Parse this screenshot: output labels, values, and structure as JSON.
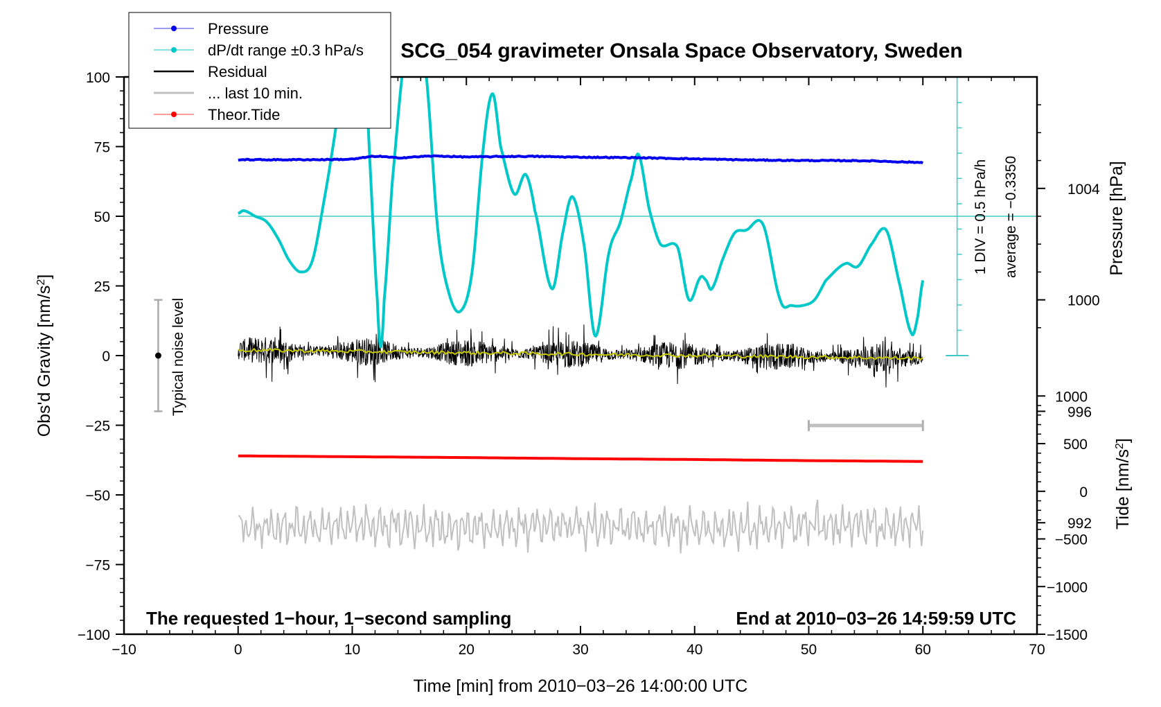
{
  "chart_data": {
    "type": "line",
    "title": "SCG_054 gravimeter Onsala Space Observatory, Sweden",
    "xlabel": "Time [min] from 2010−03−26 14:00:00 UTC",
    "ylabel_left": "Obs'd Gravity [nm/s",
    "ylabel_left_sup": "2",
    "ylabel_left_end": "]",
    "ylabel_right_pressure": "Pressure [hPa]",
    "ylabel_right_tide": "Tide [nm/s",
    "ylabel_right_tide_sup": "2",
    "ylabel_right_tide_end": "]",
    "xlim": [
      -10,
      70
    ],
    "ylim": [
      -100,
      100
    ],
    "x_ticks": [
      "−10",
      "0",
      "10",
      "20",
      "30",
      "40",
      "50",
      "60",
      "70"
    ],
    "x_tick_values": [
      -10,
      0,
      10,
      20,
      30,
      40,
      50,
      60,
      70
    ],
    "y_ticks": [
      "100",
      "75",
      "50",
      "25",
      "0",
      "−25",
      "−50",
      "−75",
      "−100"
    ],
    "y_tick_values": [
      100,
      75,
      50,
      25,
      0,
      -25,
      -50,
      -75,
      -100
    ],
    "pressure_axis": {
      "ticks": [
        "1004",
        "1000",
        "996",
        "992"
      ],
      "tick_values": [
        1004,
        1000,
        996,
        992
      ],
      "range_hpa": [
        988,
        1008
      ]
    },
    "tide_axis": {
      "ticks": [
        "1000",
        "500",
        "0",
        "−500",
        "−1000",
        "−1500"
      ],
      "tick_values": [
        1000,
        500,
        0,
        -500,
        -1000,
        -1500
      ],
      "range_nms2": [
        -1500,
        1000
      ]
    },
    "dpdt_axis_text": [
      "1 DIV = 0.5 hPa/h",
      "average = −0.3350"
    ],
    "noise_label": "Typical noise level",
    "noise_bar": [
      -20,
      20
    ],
    "bottom_left_note": "The requested 1−hour, 1−second sampling",
    "bottom_right_note": "End at 2010−03−26 14:59:59 UTC",
    "legend_placement": "top-left",
    "legend": [
      {
        "label": "Pressure",
        "color": "#0000ee",
        "marker": "dot"
      },
      {
        "label": "dP/dt range ±0.3 hPa/s",
        "color": "#00c8c8",
        "marker": "dot"
      },
      {
        "label": "Residual",
        "color": "#000000",
        "marker": "line"
      },
      {
        "label": "... last 10 min.",
        "color": "#c0c0c0",
        "marker": "line"
      },
      {
        "label": "Theor.Tide",
        "color": "#ff0000",
        "marker": "dot"
      }
    ],
    "series": [
      {
        "name": "Pressure",
        "color": "#0000ee",
        "x": [
          0,
          5,
          10,
          12,
          14,
          17,
          20,
          25,
          30,
          35,
          40,
          45,
          50,
          55,
          60
        ],
        "y": [
          70.3,
          70.3,
          70.5,
          71.5,
          71,
          71.6,
          71.3,
          71.5,
          71.2,
          71,
          70.6,
          70.2,
          70,
          69.9,
          69.3
        ]
      },
      {
        "name": "dP/dt range ±0.3 hPa/s",
        "color": "#00c8c8",
        "x": [
          0,
          0.5,
          1.5,
          2.5,
          3.5,
          4.5,
          5.5,
          6.5,
          7.5,
          8.5,
          9.5,
          10.2,
          11,
          11.6,
          12.2,
          12.5,
          12.8,
          13.5,
          14.5,
          15.5,
          16.5,
          17.5,
          18.5,
          19.5,
          20.5,
          21.5,
          22.3,
          23,
          24.2,
          25.2,
          26,
          27.5,
          28.5,
          29.3,
          30.3,
          31.3,
          32.5,
          33.5,
          34.5,
          35.1,
          36,
          37,
          38.5,
          39.5,
          40.5,
          41,
          41.5,
          42.5,
          43.5,
          44.5,
          46,
          47.5,
          48.5,
          49.5,
          50.5,
          51.5,
          53.2,
          54.3,
          55.5,
          56.8,
          58,
          59,
          59.5,
          60
        ],
        "y": [
          51,
          52,
          50,
          48,
          42,
          34,
          30,
          34,
          55,
          80,
          110,
          140,
          115,
          65,
          20,
          3,
          20,
          62,
          105,
          125,
          100,
          45,
          22,
          16,
          30,
          75,
          94,
          75,
          58,
          65,
          52,
          24,
          45,
          57,
          40,
          7,
          37,
          48,
          64,
          72,
          53,
          40,
          39,
          20,
          28,
          27,
          24,
          35,
          44,
          45,
          47,
          20,
          18,
          18,
          20,
          27,
          33,
          32,
          40,
          45,
          25,
          8,
          13,
          27
        ]
      },
      {
        "name": "Residual",
        "color": "#000000",
        "x": [
          0,
          10,
          20,
          30,
          40,
          50,
          60
        ],
        "y": [
          2,
          1.5,
          1,
          0.5,
          0,
          -0.5,
          -1
        ]
      },
      {
        "name": "... last 10 min.",
        "color": "#c0c0c0",
        "x": [
          0,
          10,
          20,
          30,
          40,
          50,
          60
        ],
        "y": [
          -62,
          -61,
          -62,
          -61,
          -62,
          -61,
          -61
        ]
      },
      {
        "name": "Theor.Tide",
        "color": "#ff0000",
        "x": [
          0,
          10,
          20,
          30,
          40,
          50,
          60
        ],
        "y": [
          -36,
          -36.3,
          -36.6,
          -37,
          -37.3,
          -37.7,
          -38
        ]
      }
    ]
  }
}
